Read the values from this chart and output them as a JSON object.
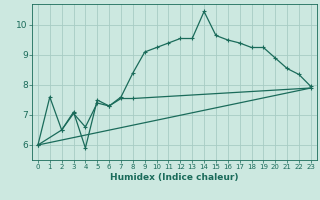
{
  "xlabel": "Humidex (Indice chaleur)",
  "bg_color": "#cce8e0",
  "line_color": "#1a6b5a",
  "grid_color": "#a8ccc4",
  "xlim": [
    -0.5,
    23.5
  ],
  "ylim": [
    5.5,
    10.7
  ],
  "yticks": [
    6,
    7,
    8,
    9,
    10
  ],
  "xticks": [
    0,
    1,
    2,
    3,
    4,
    5,
    6,
    7,
    8,
    9,
    10,
    11,
    12,
    13,
    14,
    15,
    16,
    17,
    18,
    19,
    20,
    21,
    22,
    23
  ],
  "line1_x": [
    0,
    1,
    2,
    3,
    4,
    5,
    6,
    7,
    8,
    9,
    10,
    11,
    12,
    13,
    14,
    15,
    16,
    17,
    18,
    19,
    20,
    21,
    22,
    23
  ],
  "line1_y": [
    6.0,
    7.6,
    6.5,
    7.1,
    5.9,
    7.5,
    7.3,
    7.6,
    8.4,
    9.1,
    9.25,
    9.4,
    9.55,
    9.55,
    10.45,
    9.65,
    9.5,
    9.4,
    9.25,
    9.25,
    8.9,
    8.55,
    8.35,
    7.95
  ],
  "line2_x": [
    0,
    2,
    3,
    4,
    5,
    6,
    7,
    8,
    23
  ],
  "line2_y": [
    6.0,
    6.5,
    7.05,
    6.6,
    7.4,
    7.3,
    7.55,
    7.55,
    7.9
  ],
  "line3_x": [
    0,
    23
  ],
  "line3_y": [
    6.0,
    7.9
  ],
  "marker": "+",
  "lw": 0.9,
  "ms": 3.5
}
